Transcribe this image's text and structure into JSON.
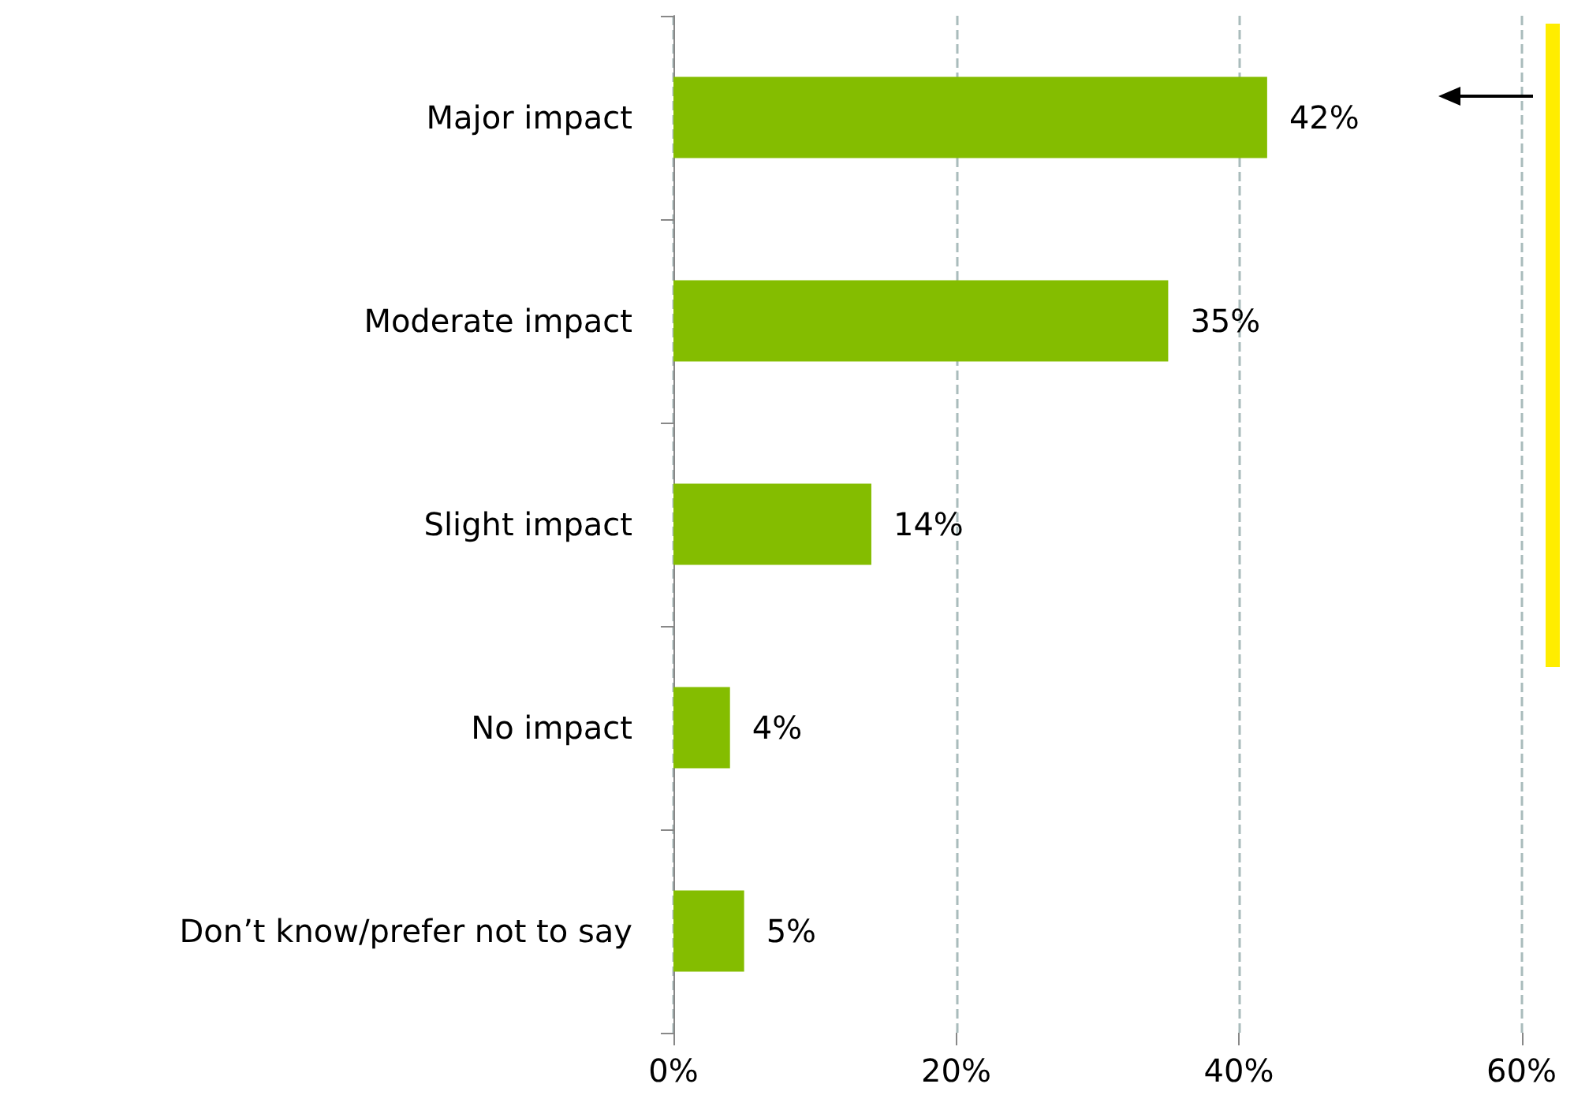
{
  "chart_data": {
    "type": "bar",
    "orientation": "horizontal",
    "categories": [
      "Major impact",
      "Moderate impact",
      "Slight impact",
      "No impact",
      "Don’t know/prefer not to say"
    ],
    "values": [
      42,
      35,
      14,
      4,
      5
    ],
    "color": "#84bd00",
    "xlim": [
      0,
      60
    ],
    "xticks": [
      {
        "value": 0,
        "label": "0%"
      },
      {
        "value": 20,
        "label": "20%"
      },
      {
        "value": 40,
        "label": "40%"
      },
      {
        "value": 60,
        "label": "60%"
      }
    ],
    "value_labels": [
      "42%",
      "35%",
      "14%",
      "4%",
      "5%"
    ],
    "grid": "x"
  }
}
